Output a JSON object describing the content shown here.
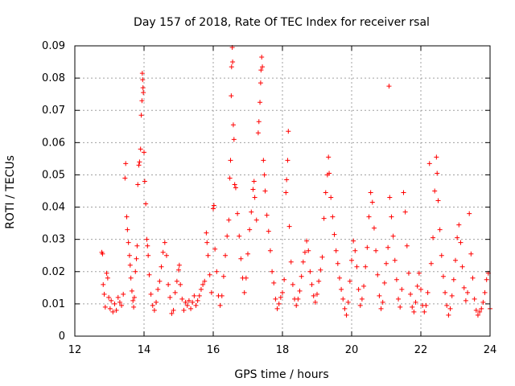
{
  "chart_data": {
    "type": "scatter",
    "title": "Day 157 of 2018, Rate Of TEC Index for receiver rsal",
    "xlabel": "GPS time / hours",
    "ylabel": "ROTI / TECUs",
    "xlim": [
      12,
      24
    ],
    "ylim": [
      0,
      0.09
    ],
    "xticks": [
      "12",
      "14",
      "16",
      "18",
      "20",
      "22",
      "24"
    ],
    "yticks": [
      "0",
      "0.01",
      "0.02",
      "0.03",
      "0.04",
      "0.05",
      "0.06",
      "0.07",
      "0.08",
      "0.09"
    ],
    "grid": true,
    "marker": "plus",
    "series": [
      {
        "name": "ROTI",
        "color": "#ff0000",
        "points": [
          [
            12.78,
            0.026
          ],
          [
            12.8,
            0.0255
          ],
          [
            12.82,
            0.016
          ],
          [
            12.85,
            0.013
          ],
          [
            12.88,
            0.009
          ],
          [
            12.92,
            0.0195
          ],
          [
            12.95,
            0.018
          ],
          [
            12.98,
            0.012
          ],
          [
            13.02,
            0.0085
          ],
          [
            13.05,
            0.011
          ],
          [
            13.1,
            0.0075
          ],
          [
            13.15,
            0.01
          ],
          [
            13.2,
            0.008
          ],
          [
            13.25,
            0.012
          ],
          [
            13.3,
            0.0105
          ],
          [
            13.35,
            0.0095
          ],
          [
            13.4,
            0.013
          ],
          [
            13.45,
            0.049
          ],
          [
            13.47,
            0.0535
          ],
          [
            13.5,
            0.037
          ],
          [
            13.52,
            0.033
          ],
          [
            13.55,
            0.029
          ],
          [
            13.58,
            0.025
          ],
          [
            13.6,
            0.022
          ],
          [
            13.62,
            0.018
          ],
          [
            13.65,
            0.014
          ],
          [
            13.68,
            0.011
          ],
          [
            13.7,
            0.009
          ],
          [
            13.72,
            0.012
          ],
          [
            13.75,
            0.02
          ],
          [
            13.78,
            0.024
          ],
          [
            13.8,
            0.028
          ],
          [
            13.82,
            0.047
          ],
          [
            13.85,
            0.053
          ],
          [
            13.87,
            0.054
          ],
          [
            13.9,
            0.058
          ],
          [
            13.92,
            0.0685
          ],
          [
            13.94,
            0.073
          ],
          [
            13.95,
            0.0815
          ],
          [
            13.96,
            0.0795
          ],
          [
            13.97,
            0.077
          ],
          [
            13.98,
            0.0755
          ],
          [
            14.0,
            0.057
          ],
          [
            14.02,
            0.048
          ],
          [
            14.05,
            0.041
          ],
          [
            14.08,
            0.03
          ],
          [
            14.1,
            0.028
          ],
          [
            14.12,
            0.025
          ],
          [
            14.15,
            0.019
          ],
          [
            14.2,
            0.013
          ],
          [
            14.25,
            0.0095
          ],
          [
            14.3,
            0.008
          ],
          [
            14.35,
            0.0105
          ],
          [
            14.4,
            0.0145
          ],
          [
            14.45,
            0.017
          ],
          [
            14.5,
            0.0215
          ],
          [
            14.55,
            0.026
          ],
          [
            14.6,
            0.029
          ],
          [
            14.65,
            0.025
          ],
          [
            14.7,
            0.016
          ],
          [
            14.75,
            0.012
          ],
          [
            14.8,
            0.007
          ],
          [
            14.85,
            0.008
          ],
          [
            14.9,
            0.0135
          ],
          [
            14.95,
            0.017
          ],
          [
            15.0,
            0.0205
          ],
          [
            15.02,
            0.022
          ],
          [
            15.05,
            0.016
          ],
          [
            15.1,
            0.0115
          ],
          [
            15.15,
            0.008
          ],
          [
            15.2,
            0.0105
          ],
          [
            15.25,
            0.0095
          ],
          [
            15.3,
            0.011
          ],
          [
            15.35,
            0.0085
          ],
          [
            15.4,
            0.0105
          ],
          [
            15.45,
            0.0125
          ],
          [
            15.5,
            0.0095
          ],
          [
            15.55,
            0.011
          ],
          [
            15.6,
            0.0125
          ],
          [
            15.65,
            0.0145
          ],
          [
            15.7,
            0.016
          ],
          [
            15.75,
            0.017
          ],
          [
            15.8,
            0.032
          ],
          [
            15.82,
            0.029
          ],
          [
            15.85,
            0.025
          ],
          [
            15.9,
            0.019
          ],
          [
            15.95,
            0.0135
          ],
          [
            16.0,
            0.0395
          ],
          [
            16.02,
            0.0405
          ],
          [
            16.05,
            0.027
          ],
          [
            16.1,
            0.02
          ],
          [
            16.15,
            0.0125
          ],
          [
            16.2,
            0.0095
          ],
          [
            16.25,
            0.0125
          ],
          [
            16.3,
            0.0185
          ],
          [
            16.35,
            0.025
          ],
          [
            16.4,
            0.031
          ],
          [
            16.45,
            0.036
          ],
          [
            16.48,
            0.049
          ],
          [
            16.5,
            0.0545
          ],
          [
            16.52,
            0.0745
          ],
          [
            16.53,
            0.0835
          ],
          [
            16.55,
            0.0895
          ],
          [
            16.56,
            0.085
          ],
          [
            16.58,
            0.0655
          ],
          [
            16.6,
            0.061
          ],
          [
            16.62,
            0.047
          ],
          [
            16.65,
            0.046
          ],
          [
            16.7,
            0.038
          ],
          [
            16.75,
            0.031
          ],
          [
            16.8,
            0.024
          ],
          [
            16.85,
            0.018
          ],
          [
            16.9,
            0.0135
          ],
          [
            16.95,
            0.018
          ],
          [
            17.0,
            0.0255
          ],
          [
            17.05,
            0.033
          ],
          [
            17.1,
            0.0385
          ],
          [
            17.15,
            0.0455
          ],
          [
            17.18,
            0.048
          ],
          [
            17.2,
            0.043
          ],
          [
            17.25,
            0.036
          ],
          [
            17.3,
            0.063
          ],
          [
            17.32,
            0.0665
          ],
          [
            17.35,
            0.0725
          ],
          [
            17.37,
            0.0785
          ],
          [
            17.38,
            0.0825
          ],
          [
            17.4,
            0.0865
          ],
          [
            17.42,
            0.0835
          ],
          [
            17.45,
            0.0545
          ],
          [
            17.48,
            0.05
          ],
          [
            17.5,
            0.045
          ],
          [
            17.55,
            0.0375
          ],
          [
            17.6,
            0.0325
          ],
          [
            17.65,
            0.0265
          ],
          [
            17.7,
            0.02
          ],
          [
            17.75,
            0.0165
          ],
          [
            17.8,
            0.0115
          ],
          [
            17.85,
            0.0085
          ],
          [
            17.9,
            0.01
          ],
          [
            17.95,
            0.012
          ],
          [
            18.0,
            0.0135
          ],
          [
            18.05,
            0.0175
          ],
          [
            18.1,
            0.0445
          ],
          [
            18.12,
            0.0485
          ],
          [
            18.15,
            0.0545
          ],
          [
            18.17,
            0.0635
          ],
          [
            18.2,
            0.034
          ],
          [
            18.25,
            0.023
          ],
          [
            18.3,
            0.016
          ],
          [
            18.35,
            0.0115
          ],
          [
            18.4,
            0.0095
          ],
          [
            18.45,
            0.0115
          ],
          [
            18.5,
            0.014
          ],
          [
            18.55,
            0.0185
          ],
          [
            18.6,
            0.023
          ],
          [
            18.65,
            0.026
          ],
          [
            18.7,
            0.0295
          ],
          [
            18.75,
            0.0265
          ],
          [
            18.8,
            0.02
          ],
          [
            18.85,
            0.016
          ],
          [
            18.9,
            0.0125
          ],
          [
            18.95,
            0.0105
          ],
          [
            19.0,
            0.013
          ],
          [
            19.05,
            0.017
          ],
          [
            19.1,
            0.0205
          ],
          [
            19.15,
            0.0245
          ],
          [
            19.2,
            0.0365
          ],
          [
            19.25,
            0.0445
          ],
          [
            19.3,
            0.05
          ],
          [
            19.33,
            0.0555
          ],
          [
            19.35,
            0.0505
          ],
          [
            19.4,
            0.043
          ],
          [
            19.45,
            0.037
          ],
          [
            19.5,
            0.0315
          ],
          [
            19.55,
            0.0265
          ],
          [
            19.6,
            0.0225
          ],
          [
            19.65,
            0.018
          ],
          [
            19.7,
            0.0145
          ],
          [
            19.75,
            0.0115
          ],
          [
            19.8,
            0.0085
          ],
          [
            19.85,
            0.0065
          ],
          [
            19.9,
            0.0105
          ],
          [
            19.95,
            0.017
          ],
          [
            20.0,
            0.0235
          ],
          [
            20.05,
            0.0295
          ],
          [
            20.1,
            0.0265
          ],
          [
            20.15,
            0.0215
          ],
          [
            20.2,
            0.0145
          ],
          [
            20.25,
            0.0095
          ],
          [
            20.3,
            0.0115
          ],
          [
            20.35,
            0.0155
          ],
          [
            20.4,
            0.0215
          ],
          [
            20.45,
            0.0275
          ],
          [
            20.5,
            0.037
          ],
          [
            20.55,
            0.0445
          ],
          [
            20.6,
            0.0415
          ],
          [
            20.65,
            0.0335
          ],
          [
            20.7,
            0.0265
          ],
          [
            20.75,
            0.019
          ],
          [
            20.8,
            0.0125
          ],
          [
            20.85,
            0.0085
          ],
          [
            20.9,
            0.0105
          ],
          [
            20.95,
            0.0165
          ],
          [
            21.0,
            0.0225
          ],
          [
            21.05,
            0.0275
          ],
          [
            21.08,
            0.0775
          ],
          [
            21.1,
            0.043
          ],
          [
            21.15,
            0.037
          ],
          [
            21.2,
            0.031
          ],
          [
            21.25,
            0.0235
          ],
          [
            21.3,
            0.0175
          ],
          [
            21.35,
            0.0115
          ],
          [
            21.4,
            0.009
          ],
          [
            21.45,
            0.0145
          ],
          [
            21.5,
            0.0445
          ],
          [
            21.55,
            0.0385
          ],
          [
            21.6,
            0.028
          ],
          [
            21.65,
            0.0195
          ],
          [
            21.7,
            0.013
          ],
          [
            21.75,
            0.009
          ],
          [
            21.8,
            0.0075
          ],
          [
            21.85,
            0.0105
          ],
          [
            21.9,
            0.0155
          ],
          [
            21.95,
            0.0195
          ],
          [
            22.0,
            0.0145
          ],
          [
            22.05,
            0.0095
          ],
          [
            22.1,
            0.0075
          ],
          [
            22.15,
            0.0095
          ],
          [
            22.2,
            0.0135
          ],
          [
            22.25,
            0.0535
          ],
          [
            22.3,
            0.0225
          ],
          [
            22.35,
            0.0305
          ],
          [
            22.4,
            0.045
          ],
          [
            22.45,
            0.0555
          ],
          [
            22.47,
            0.0505
          ],
          [
            22.5,
            0.042
          ],
          [
            22.55,
            0.033
          ],
          [
            22.6,
            0.025
          ],
          [
            22.65,
            0.0185
          ],
          [
            22.7,
            0.0135
          ],
          [
            22.75,
            0.0095
          ],
          [
            22.8,
            0.0065
          ],
          [
            22.85,
            0.0085
          ],
          [
            22.9,
            0.0125
          ],
          [
            22.95,
            0.0175
          ],
          [
            23.0,
            0.0235
          ],
          [
            23.05,
            0.0305
          ],
          [
            23.1,
            0.0345
          ],
          [
            23.15,
            0.029
          ],
          [
            23.2,
            0.0215
          ],
          [
            23.25,
            0.015
          ],
          [
            23.3,
            0.011
          ],
          [
            23.35,
            0.0135
          ],
          [
            23.4,
            0.038
          ],
          [
            23.45,
            0.0255
          ],
          [
            23.5,
            0.018
          ],
          [
            23.55,
            0.0115
          ],
          [
            23.6,
            0.008
          ],
          [
            23.65,
            0.0065
          ],
          [
            23.7,
            0.0075
          ],
          [
            23.75,
            0.0085
          ],
          [
            23.8,
            0.0105
          ],
          [
            23.85,
            0.0135
          ],
          [
            23.9,
            0.0175
          ],
          [
            23.95,
            0.0195
          ],
          [
            24.0,
            0.0085
          ]
        ]
      }
    ]
  }
}
